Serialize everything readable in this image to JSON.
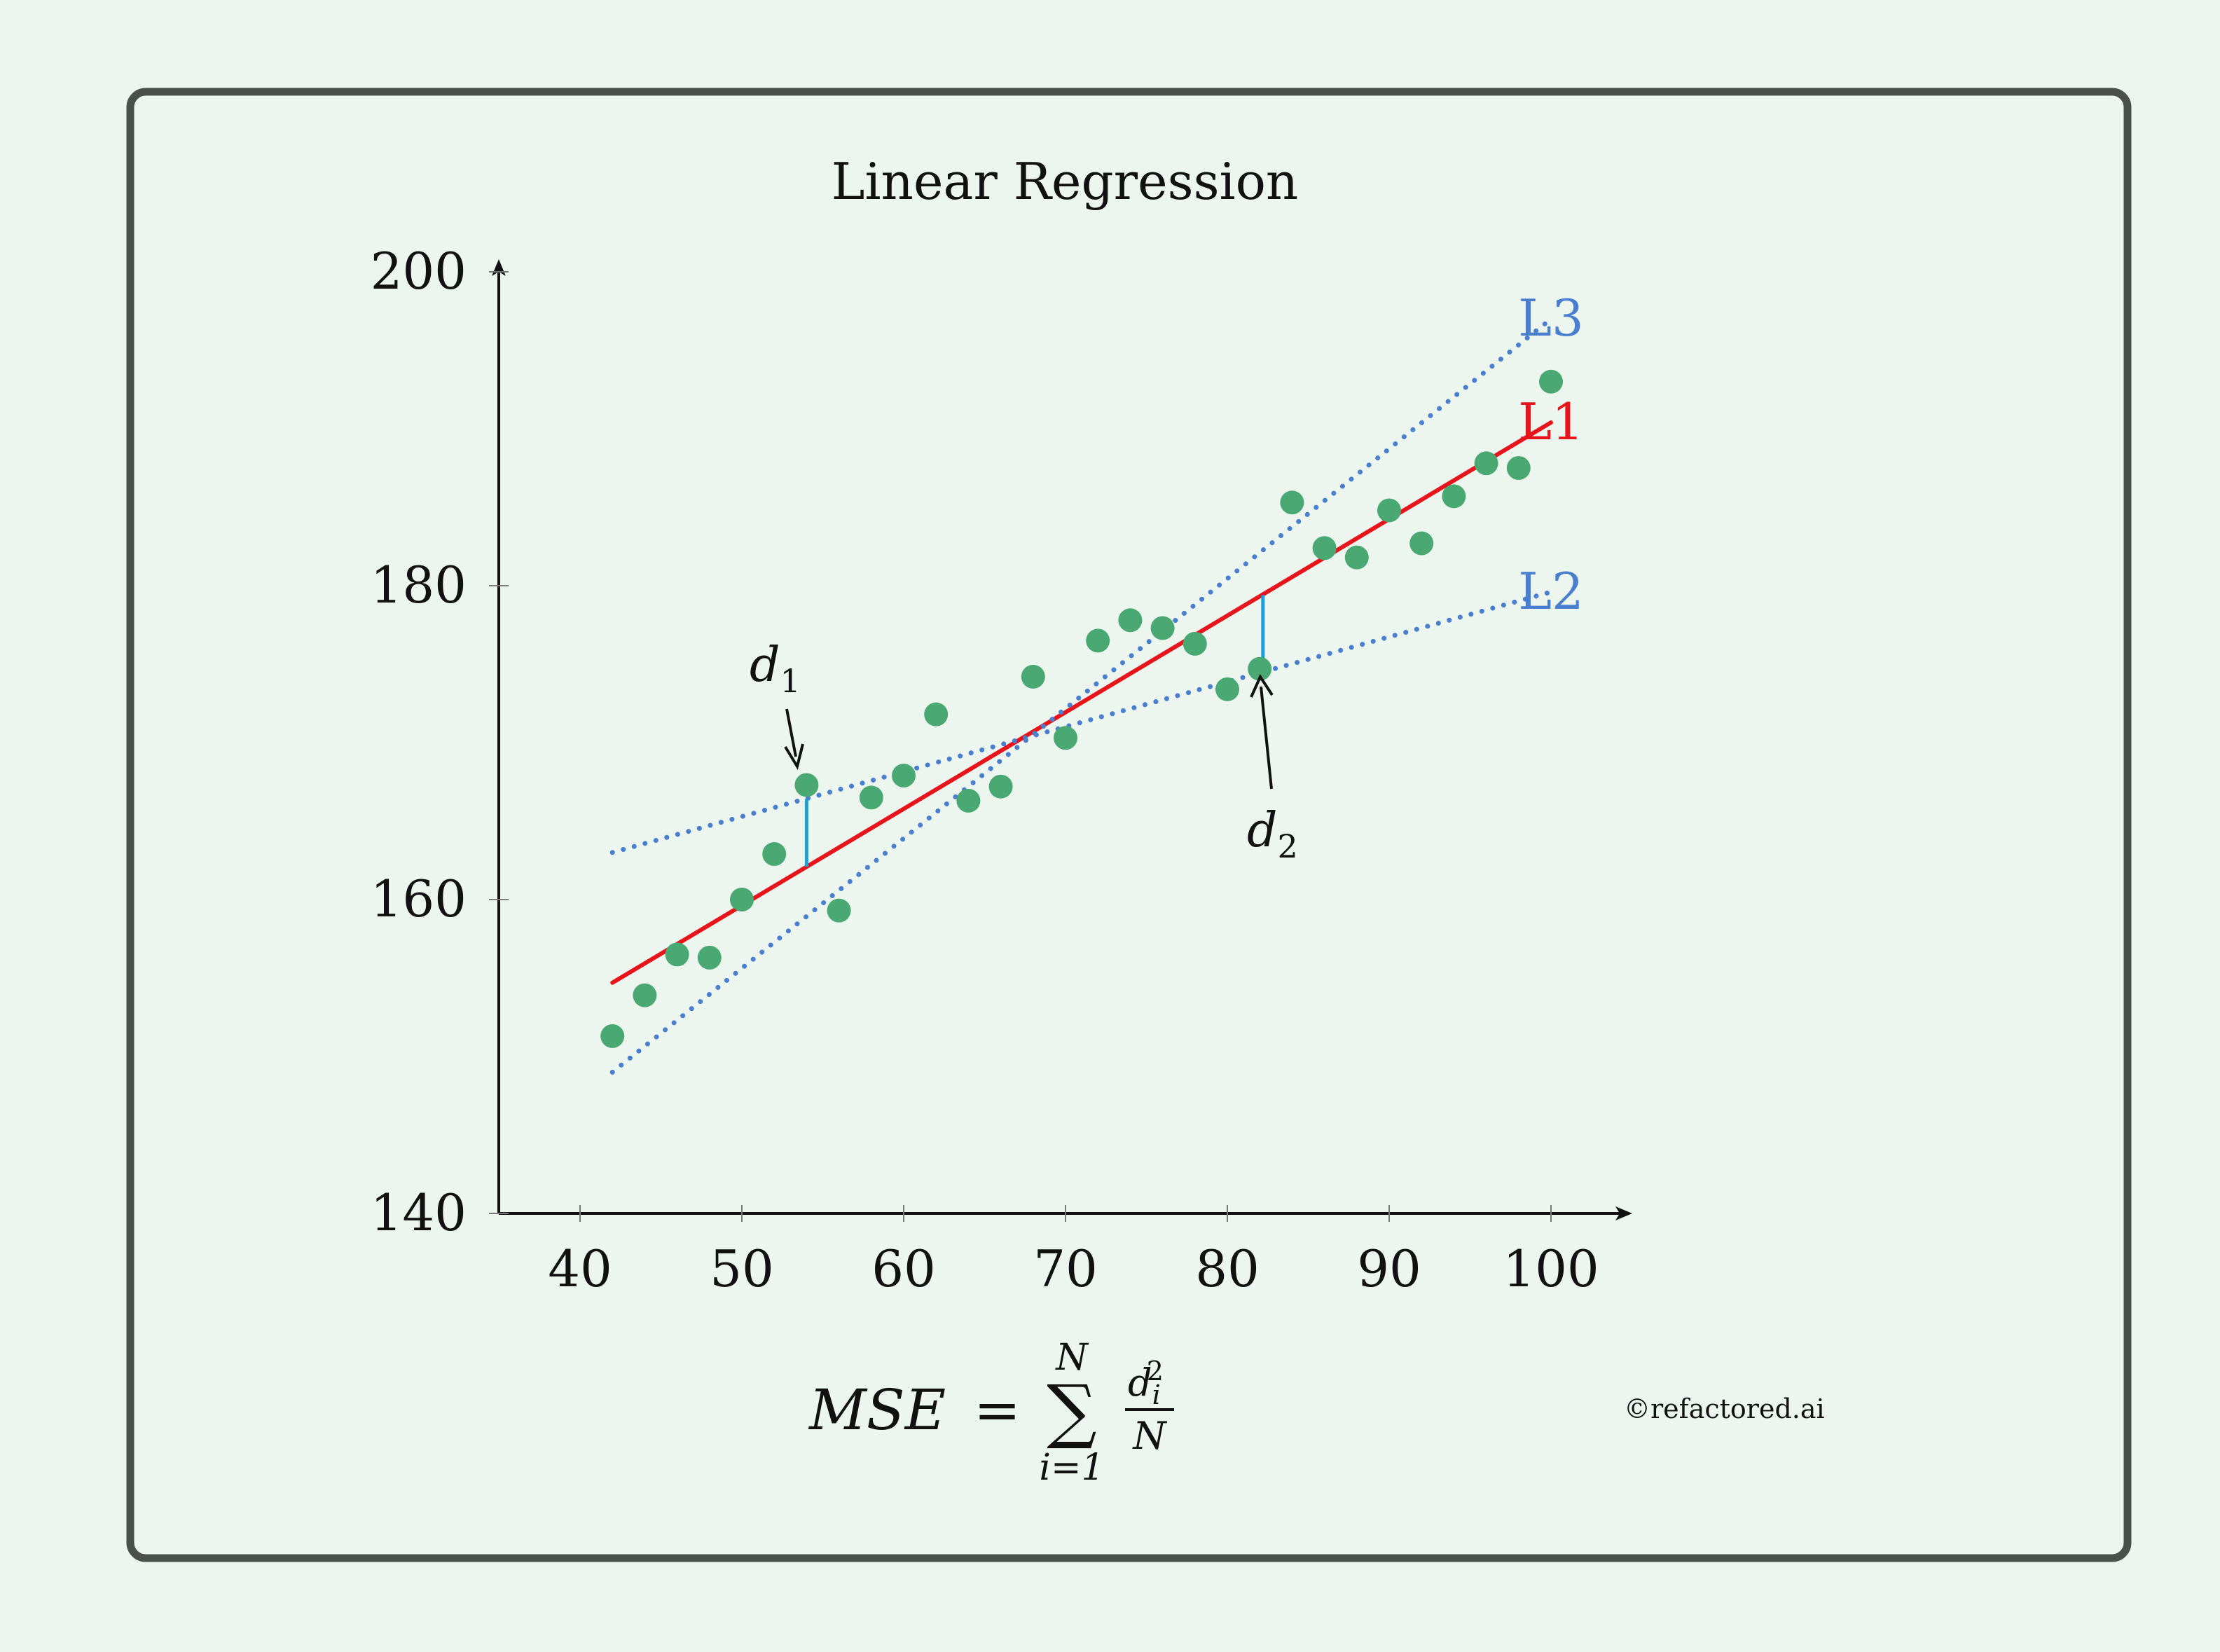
{
  "chart_data": {
    "type": "scatter",
    "title": "Linear Regression",
    "xlabel": "",
    "ylabel": "",
    "xlim": [
      35,
      105
    ],
    "ylim": [
      140,
      200
    ],
    "x_ticks": [
      40,
      50,
      60,
      70,
      80,
      90,
      100
    ],
    "y_ticks": [
      140,
      160,
      180,
      200
    ],
    "grid": false,
    "colors": {
      "background": "#ecf6ef",
      "frame": "#4c504d",
      "points": "#4aa872",
      "l1": "#e8141c",
      "l2": "#4a7fd0",
      "l3": "#4a7fd0",
      "residual": "#1a9fd6",
      "axis": "#111111"
    },
    "points": {
      "x": [
        42,
        44,
        46,
        48,
        50,
        52,
        54,
        56,
        58,
        60,
        62,
        64,
        66,
        68,
        70,
        72,
        74,
        76,
        78,
        80,
        82,
        84,
        86,
        88,
        90,
        92,
        94,
        96,
        98,
        100
      ],
      "y": [
        151.3,
        153.9,
        156.5,
        156.3,
        160.0,
        162.9,
        167.3,
        159.3,
        166.5,
        167.9,
        171.8,
        166.3,
        167.2,
        174.2,
        170.3,
        176.5,
        177.8,
        177.3,
        176.3,
        173.4,
        174.7,
        185.3,
        182.4,
        181.8,
        184.8,
        182.7,
        185.7,
        187.8,
        187.5,
        193.0
      ]
    },
    "lines": [
      {
        "name": "L1",
        "x": [
          42,
          100
        ],
        "y": [
          154.7,
          190.4
        ],
        "style": "solid"
      },
      {
        "name": "L2",
        "x": [
          42,
          100
        ],
        "y": [
          163.0,
          179.6
        ],
        "style": "dotted"
      },
      {
        "name": "L3",
        "x": [
          42,
          100
        ],
        "y": [
          149.0,
          197.0
        ],
        "style": "dotted"
      }
    ],
    "residuals": [
      {
        "label_base": "d",
        "label_sub": "1",
        "x": 54,
        "y_from": 162.1,
        "y_to": 166.4
      },
      {
        "label_base": "d",
        "label_sub": "2",
        "x": 82.2,
        "y_from": 175.0,
        "y_to": 179.4
      }
    ]
  },
  "formula": {
    "lhs": "MSE",
    "equals": "=",
    "sum": "∑",
    "upper": "N",
    "lower": "i=1",
    "numerator_base": "d",
    "numerator_sub": "i",
    "numerator_sup": "2",
    "denominator": "N"
  },
  "watermark": "©refactored.ai"
}
